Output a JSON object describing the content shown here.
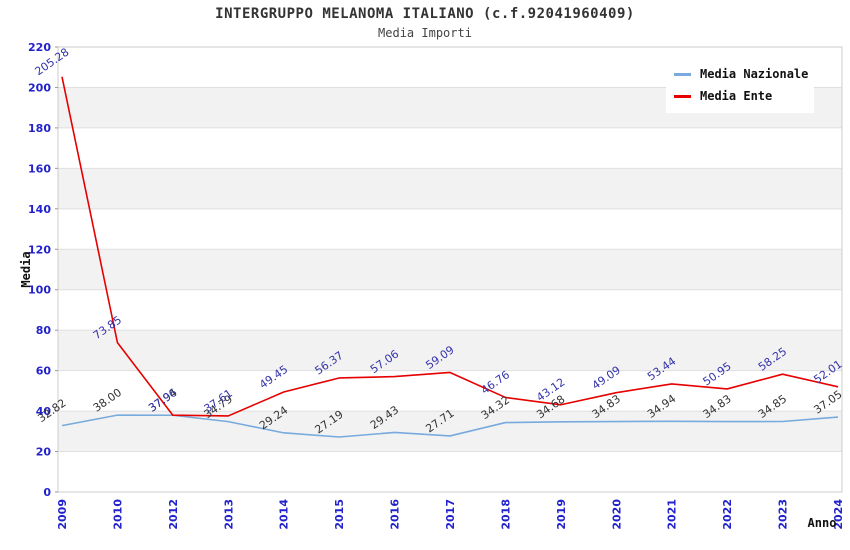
{
  "header": {
    "title": "INTERGRUPPO MELANOMA ITALIANO (c.f.92041960409)",
    "subtitle": "Media Importi"
  },
  "legend": {
    "items": [
      {
        "label": "Media Nazionale",
        "color": "#77aadd"
      },
      {
        "label": "Media Ente",
        "color": "#e60000"
      }
    ]
  },
  "chart_data": {
    "type": "line",
    "title": "INTERGRUPPO MELANOMA ITALIANO (c.f.92041960409)",
    "subtitle": "Media Importi",
    "xlabel": "Anno",
    "ylabel": "Media",
    "ylim": [
      0,
      220
    ],
    "ytick_step": 20,
    "grid": "horizontal-bands",
    "legend_position": "top-right",
    "x": [
      "2009",
      "2010",
      "2012",
      "2013",
      "2014",
      "2015",
      "2016",
      "2017",
      "2018",
      "2019",
      "2020",
      "2021",
      "2022",
      "2023",
      "2024"
    ],
    "series": [
      {
        "name": "Media Nazionale",
        "color": "#77aadd",
        "label_color": "#333333",
        "values": [
          32.82,
          38.0,
          37.94,
          34.79,
          29.24,
          27.19,
          29.43,
          27.71,
          34.32,
          34.68,
          34.83,
          34.94,
          34.83,
          34.85,
          37.05
        ]
      },
      {
        "name": "Media Ente",
        "color": "#e60000",
        "label_color": "#3333aa",
        "values": [
          205.28,
          73.85,
          37.96,
          37.61,
          49.45,
          56.37,
          57.06,
          59.09,
          46.76,
          43.12,
          49.09,
          53.44,
          50.95,
          58.25,
          52.01
        ]
      }
    ],
    "colors": {
      "axis_tick_label": "#2222cc",
      "band": "#f2f2f2",
      "gridline": "#e0e0e0",
      "plot_border": "#cccccc",
      "axis_title": "#111111"
    }
  }
}
